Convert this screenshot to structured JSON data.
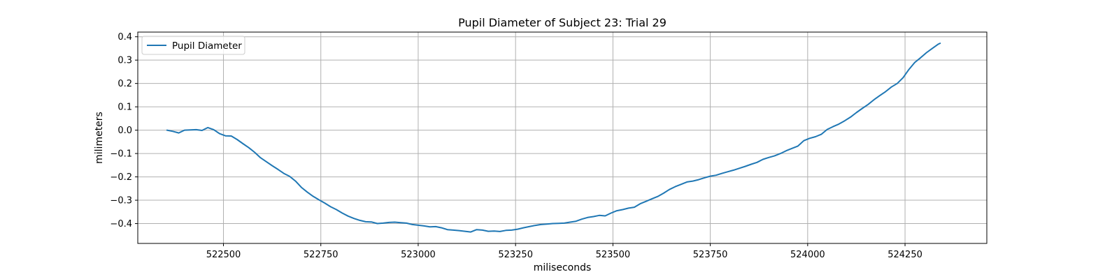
{
  "chart_data": {
    "type": "line",
    "title": "Pupil Diameter of Subject 23: Trial 29",
    "xlabel": "miliseconds",
    "ylabel": "milimeters",
    "xlim": [
      522280,
      524460
    ],
    "ylim": [
      -0.485,
      0.42
    ],
    "xticks": [
      522500,
      522750,
      523000,
      523250,
      523500,
      523750,
      524000,
      524250
    ],
    "yticks": [
      -0.4,
      -0.3,
      -0.2,
      -0.1,
      0.0,
      0.1,
      0.2,
      0.3,
      0.4
    ],
    "xtick_labels": [
      "522500",
      "522750",
      "523000",
      "523250",
      "523500",
      "523750",
      "524000",
      "524250"
    ],
    "ytick_labels": [
      "−0.4",
      "−0.3",
      "−0.2",
      "−0.1",
      "0.0",
      "0.1",
      "0.2",
      "0.3",
      "0.4"
    ],
    "grid": true,
    "legend_position": "upper-left",
    "series": [
      {
        "name": "Pupil Diameter",
        "color": "#1f77b4",
        "x": [
          522355,
          522370,
          522385,
          522400,
          522415,
          522430,
          522445,
          522460,
          522475,
          522490,
          522505,
          522520,
          522535,
          522550,
          522565,
          522580,
          522595,
          522610,
          522625,
          522640,
          522655,
          522670,
          522685,
          522700,
          522715,
          522730,
          522745,
          522760,
          522775,
          522790,
          522805,
          522820,
          522835,
          522850,
          522865,
          522880,
          522895,
          522910,
          522925,
          522940,
          522955,
          522970,
          522985,
          523000,
          523015,
          523030,
          523045,
          523060,
          523075,
          523090,
          523105,
          523120,
          523135,
          523150,
          523165,
          523180,
          523195,
          523210,
          523225,
          523240,
          523255,
          523270,
          523285,
          523300,
          523315,
          523330,
          523345,
          523360,
          523375,
          523390,
          523405,
          523420,
          523435,
          523450,
          523465,
          523480,
          523495,
          523510,
          523525,
          523540,
          523555,
          523570,
          523585,
          523600,
          523615,
          523630,
          523645,
          523660,
          523675,
          523690,
          523705,
          523720,
          523735,
          523750,
          523765,
          523780,
          523795,
          523810,
          523825,
          523840,
          523855,
          523870,
          523885,
          523900,
          523915,
          523930,
          523945,
          523960,
          523975,
          523990,
          524005,
          524020,
          524035,
          524050,
          524065,
          524080,
          524095,
          524110,
          524125,
          524140,
          524155,
          524170,
          524185,
          524200,
          524215,
          524230,
          524245,
          524260,
          524275,
          524290,
          524305,
          524320,
          524335,
          524340
        ],
        "values": [
          0.0,
          -0.005,
          -0.012,
          0.0,
          0.001,
          0.002,
          -0.001,
          0.011,
          0.002,
          -0.015,
          -0.024,
          -0.025,
          -0.04,
          -0.058,
          -0.075,
          -0.095,
          -0.118,
          -0.135,
          -0.152,
          -0.168,
          -0.185,
          -0.198,
          -0.218,
          -0.245,
          -0.265,
          -0.283,
          -0.298,
          -0.312,
          -0.328,
          -0.34,
          -0.355,
          -0.368,
          -0.378,
          -0.386,
          -0.392,
          -0.393,
          -0.4,
          -0.398,
          -0.395,
          -0.394,
          -0.396,
          -0.398,
          -0.404,
          -0.407,
          -0.41,
          -0.414,
          -0.413,
          -0.418,
          -0.426,
          -0.428,
          -0.43,
          -0.433,
          -0.436,
          -0.426,
          -0.428,
          -0.433,
          -0.432,
          -0.434,
          -0.429,
          -0.428,
          -0.424,
          -0.418,
          -0.413,
          -0.408,
          -0.404,
          -0.402,
          -0.4,
          -0.399,
          -0.398,
          -0.394,
          -0.39,
          -0.381,
          -0.374,
          -0.37,
          -0.365,
          -0.367,
          -0.355,
          -0.345,
          -0.34,
          -0.334,
          -0.33,
          -0.315,
          -0.305,
          -0.294,
          -0.284,
          -0.27,
          -0.254,
          -0.242,
          -0.232,
          -0.222,
          -0.218,
          -0.212,
          -0.204,
          -0.197,
          -0.193,
          -0.185,
          -0.178,
          -0.171,
          -0.163,
          -0.155,
          -0.146,
          -0.138,
          -0.125,
          -0.117,
          -0.11,
          -0.1,
          -0.088,
          -0.078,
          -0.068,
          -0.045,
          -0.035,
          -0.028,
          -0.018,
          0.003,
          0.015,
          0.026,
          0.04,
          0.056,
          0.075,
          0.093,
          0.11,
          0.13,
          0.148,
          0.165,
          0.185,
          0.2,
          0.225,
          0.26,
          0.29,
          0.31,
          0.332,
          0.35,
          0.368,
          0.372
        ]
      }
    ]
  }
}
